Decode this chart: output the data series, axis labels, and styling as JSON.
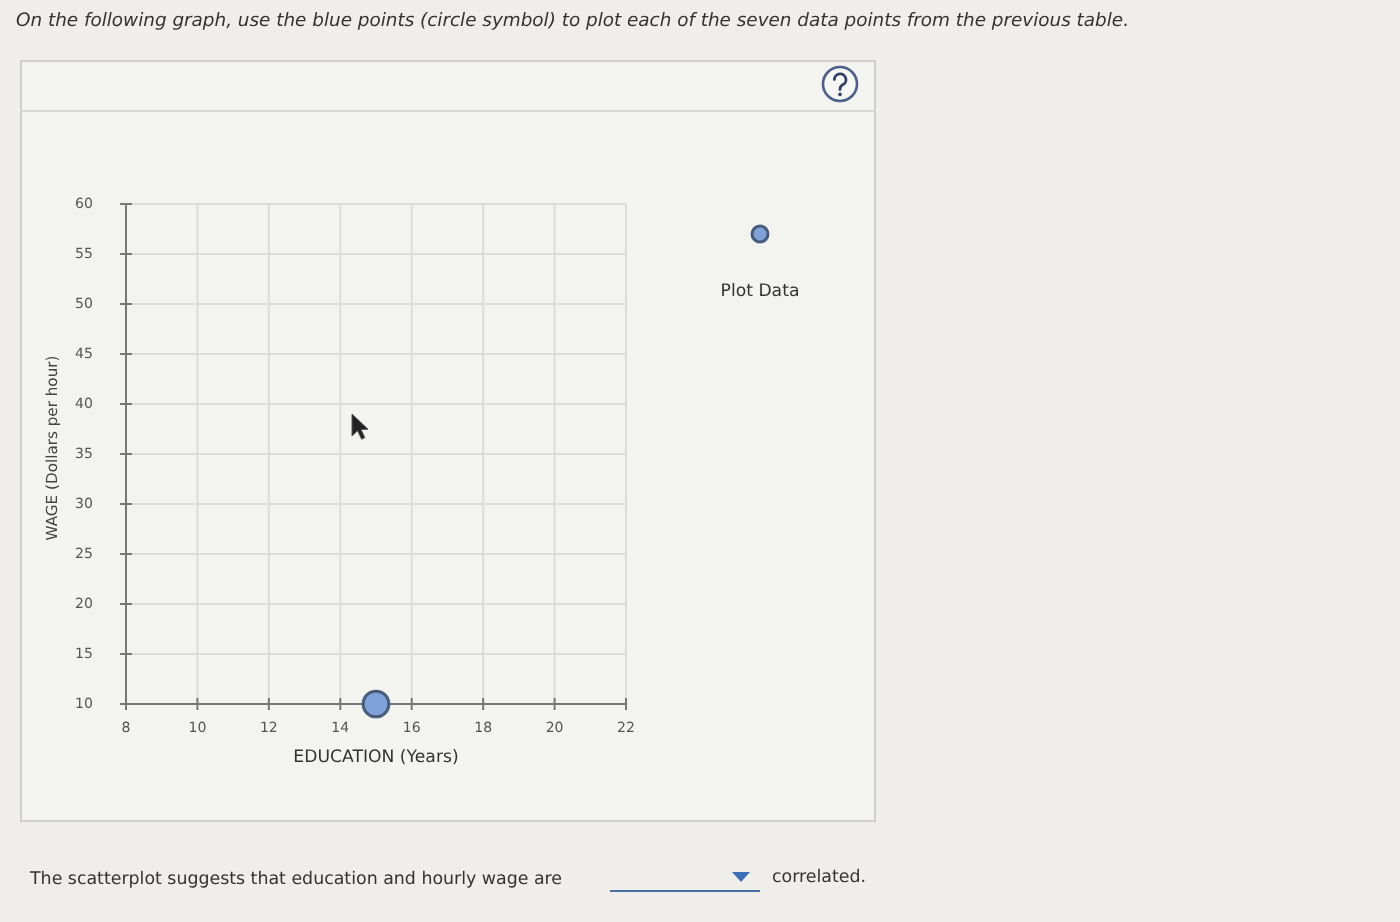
{
  "chart_data": {
    "type": "scatter",
    "xlabel": "EDUCATION (Years)",
    "ylabel": "WAGE (Dollars per hour)",
    "annotations": [
      "On the following graph, use the blue points (circle symbol) to plot each of the seven data points from the previous table.",
      "The scatterplot suggests that education and hourly wage are",
      "correlated."
    ],
    "series": [
      {
        "name": "Plot Data",
        "color": "#7fa3d9",
        "x": [
          15
        ],
        "values": [
          10
        ]
      }
    ],
    "xlim": [
      8,
      22
    ],
    "xticks": [
      8,
      10,
      12,
      14,
      16,
      18,
      20,
      22
    ],
    "ylim": [
      10,
      60
    ],
    "yticks": [
      10,
      15,
      20,
      25,
      30,
      35,
      40,
      45,
      50,
      55,
      60
    ],
    "grid": true,
    "legend": "right",
    "marker": "circle"
  }
}
